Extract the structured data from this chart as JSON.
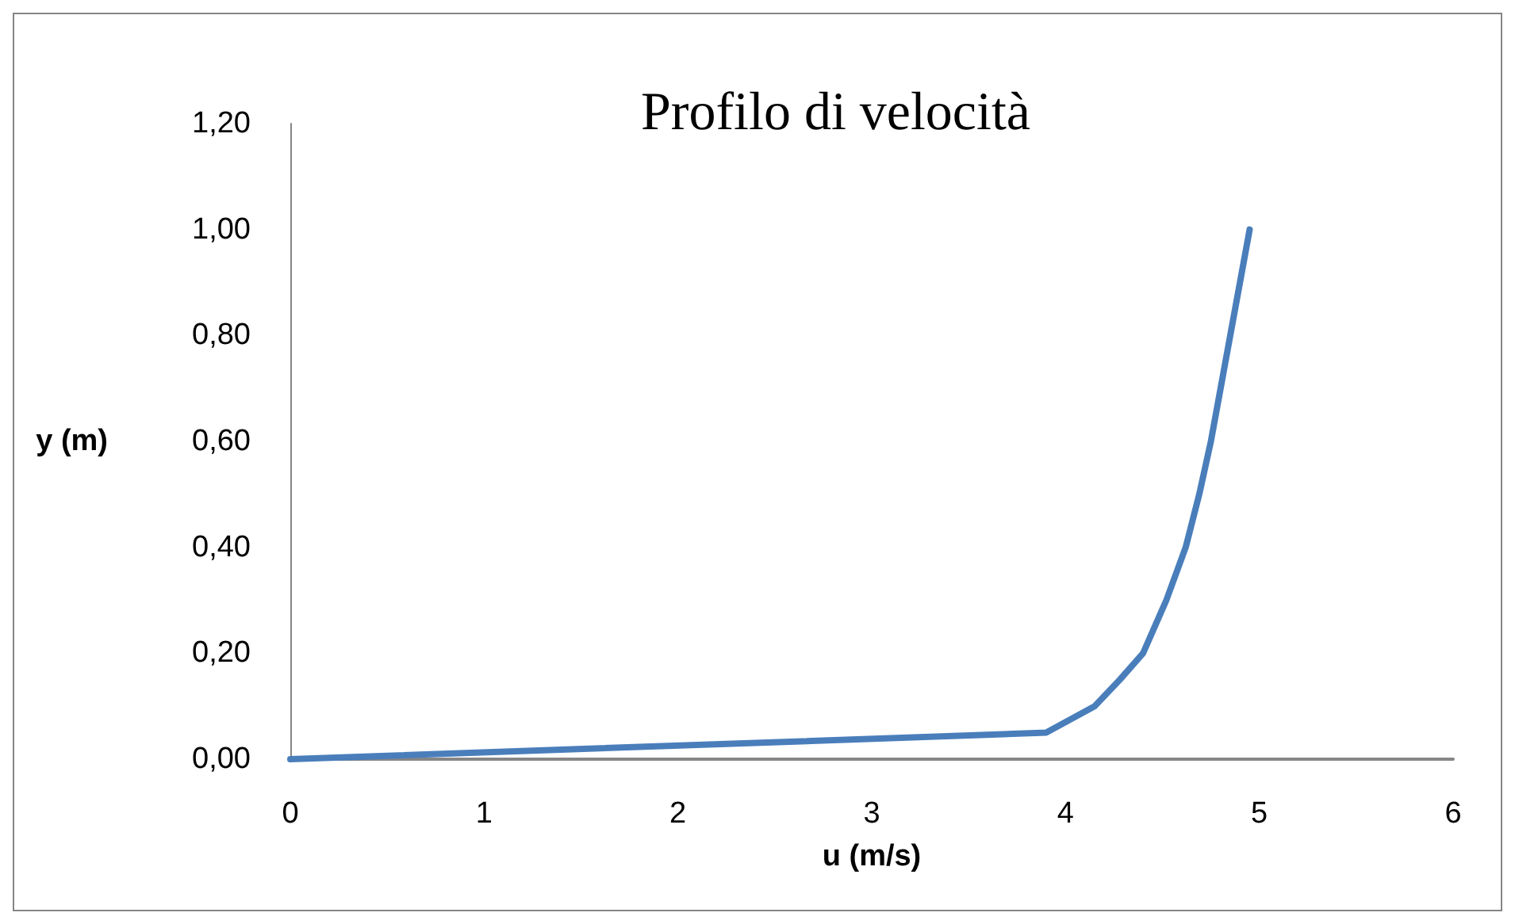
{
  "chart_data": {
    "type": "line",
    "title": "Profilo di velocità",
    "xlabel": "u (m/s)",
    "ylabel": "y (m)",
    "xlim": [
      0,
      6
    ],
    "xticks": [
      0,
      1,
      2,
      3,
      4,
      5,
      6
    ],
    "ylim": [
      0,
      1.2
    ],
    "yticks": [
      {
        "value": 0,
        "label": "0,00"
      },
      {
        "value": 0.2,
        "label": "0,20"
      },
      {
        "value": 0.4,
        "label": "0,40"
      },
      {
        "value": 0.6,
        "label": "0,60"
      },
      {
        "value": 0.8,
        "label": "0,80"
      },
      {
        "value": 1,
        "label": "1,00"
      },
      {
        "value": 1.2,
        "label": "1,20"
      }
    ],
    "grid": false,
    "marker": "none",
    "line_style": "solid",
    "series": [
      {
        "color": "#4a7ebb",
        "x": [
          0,
          3.9,
          4.15,
          4.28,
          4.4,
          4.52,
          4.62,
          4.69,
          4.75,
          4.8,
          4.85,
          4.9,
          4.95
        ],
        "values": [
          0,
          0.05,
          0.1,
          0.15,
          0.2,
          0.3,
          0.4,
          0.5,
          0.6,
          0.7,
          0.8,
          0.9,
          1.0
        ]
      }
    ]
  }
}
